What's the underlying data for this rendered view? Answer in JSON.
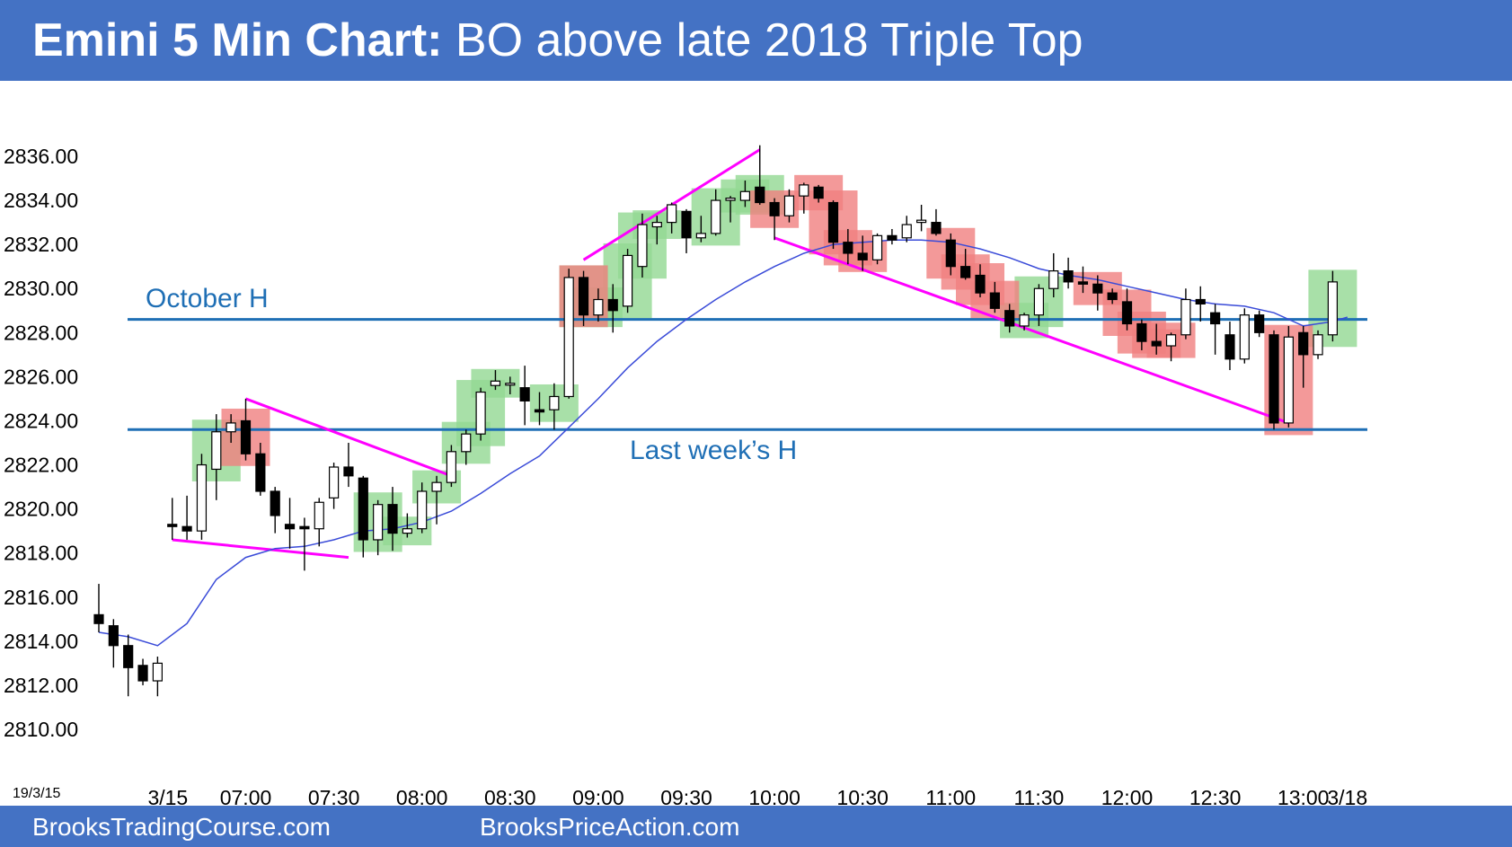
{
  "header": {
    "title_bold": "Emini 5 Min Chart:",
    "title_rest": " BO above late 2018 Triple Top"
  },
  "footer": {
    "left": "BrooksTradingCourse.com",
    "right": "BrooksPriceAction.com"
  },
  "colors": {
    "header_bg": "#4472c4",
    "bull_signal": "#92d892",
    "bear_signal": "#f08080",
    "level_line": "#1f6fb5",
    "trendline": "#ff00ff",
    "ema": "#3a4bd8"
  },
  "chart_data": {
    "type": "candlestick",
    "title": "Emini 5 Min Chart: BO above late 2018 Triple Top",
    "corner_date_label": "19/3/15",
    "ylim": [
      2809,
      2839
    ],
    "yticks": [
      2810,
      2812,
      2814,
      2816,
      2818,
      2820,
      2822,
      2824,
      2826,
      2828,
      2830,
      2832,
      2834,
      2836
    ],
    "ytick_labels": [
      "2810.00",
      "2812.00",
      "2814.00",
      "2816.00",
      "2818.00",
      "2820.00",
      "2822.00",
      "2824.00",
      "2826.00",
      "2828.00",
      "2830.00",
      "2832.00",
      "2834.00",
      "2836.00"
    ],
    "xtick_labels": [
      {
        "bar": 4.7,
        "label": "3/15"
      },
      {
        "bar": 10,
        "label": "07:00"
      },
      {
        "bar": 16,
        "label": "07:30"
      },
      {
        "bar": 22,
        "label": "08:00"
      },
      {
        "bar": 28,
        "label": "08:30"
      },
      {
        "bar": 34,
        "label": "09:00"
      },
      {
        "bar": 40,
        "label": "09:30"
      },
      {
        "bar": 46,
        "label": "10:00"
      },
      {
        "bar": 52,
        "label": "10:30"
      },
      {
        "bar": 58,
        "label": "11:00"
      },
      {
        "bar": 64,
        "label": "11:30"
      },
      {
        "bar": 70,
        "label": "12:00"
      },
      {
        "bar": 76,
        "label": "12:30"
      },
      {
        "bar": 82,
        "label": "13:00"
      },
      {
        "bar": 85,
        "label": "3/18"
      }
    ],
    "bars": [
      {
        "o": 2815.2,
        "h": 2816.6,
        "l": 2814.4,
        "c": 2814.8
      },
      {
        "o": 2814.7,
        "h": 2815.0,
        "l": 2812.8,
        "c": 2813.8
      },
      {
        "o": 2813.8,
        "h": 2814.3,
        "l": 2811.5,
        "c": 2812.8
      },
      {
        "o": 2812.9,
        "h": 2813.2,
        "l": 2812.0,
        "c": 2812.2
      },
      {
        "o": 2812.2,
        "h": 2813.3,
        "l": 2811.5,
        "c": 2813.0
      },
      {
        "o": 2819.3,
        "h": 2820.5,
        "l": 2818.6,
        "c": 2819.2
      },
      {
        "o": 2819.2,
        "h": 2820.6,
        "l": 2818.6,
        "c": 2819.0
      },
      {
        "o": 2819.0,
        "h": 2822.5,
        "l": 2818.6,
        "c": 2822.0
      },
      {
        "o": 2821.8,
        "h": 2824.3,
        "l": 2820.4,
        "c": 2823.5
      },
      {
        "o": 2823.5,
        "h": 2824.3,
        "l": 2823.0,
        "c": 2823.9
      },
      {
        "o": 2824.0,
        "h": 2825.0,
        "l": 2822.2,
        "c": 2822.5
      },
      {
        "o": 2822.5,
        "h": 2823.0,
        "l": 2820.6,
        "c": 2820.8
      },
      {
        "o": 2820.8,
        "h": 2821.0,
        "l": 2818.9,
        "c": 2819.7
      },
      {
        "o": 2819.3,
        "h": 2820.5,
        "l": 2818.2,
        "c": 2819.1
      },
      {
        "o": 2819.2,
        "h": 2819.6,
        "l": 2817.2,
        "c": 2819.1
      },
      {
        "o": 2819.1,
        "h": 2820.5,
        "l": 2818.3,
        "c": 2820.3
      },
      {
        "o": 2820.5,
        "h": 2822.1,
        "l": 2820.0,
        "c": 2821.9
      },
      {
        "o": 2821.9,
        "h": 2823.0,
        "l": 2821.0,
        "c": 2821.5
      },
      {
        "o": 2821.4,
        "h": 2821.5,
        "l": 2817.8,
        "c": 2818.6
      },
      {
        "o": 2818.6,
        "h": 2820.4,
        "l": 2817.9,
        "c": 2820.2
      },
      {
        "o": 2820.2,
        "h": 2821.0,
        "l": 2818.1,
        "c": 2818.9
      },
      {
        "o": 2818.9,
        "h": 2819.8,
        "l": 2818.7,
        "c": 2819.1
      },
      {
        "o": 2819.1,
        "h": 2821.2,
        "l": 2818.9,
        "c": 2820.8
      },
      {
        "o": 2820.8,
        "h": 2821.5,
        "l": 2819.3,
        "c": 2821.2
      },
      {
        "o": 2821.2,
        "h": 2822.9,
        "l": 2821.0,
        "c": 2822.6
      },
      {
        "o": 2822.6,
        "h": 2823.6,
        "l": 2822.0,
        "c": 2823.4
      },
      {
        "o": 2823.4,
        "h": 2825.5,
        "l": 2823.1,
        "c": 2825.3
      },
      {
        "o": 2825.6,
        "h": 2826.3,
        "l": 2825.4,
        "c": 2825.8
      },
      {
        "o": 2825.7,
        "h": 2826.0,
        "l": 2825.2,
        "c": 2825.7
      },
      {
        "o": 2825.5,
        "h": 2826.5,
        "l": 2823.8,
        "c": 2824.9
      },
      {
        "o": 2824.5,
        "h": 2825.3,
        "l": 2823.8,
        "c": 2824.4
      },
      {
        "o": 2824.5,
        "h": 2825.7,
        "l": 2823.6,
        "c": 2825.1
      },
      {
        "o": 2825.1,
        "h": 2830.9,
        "l": 2825.0,
        "c": 2830.5
      },
      {
        "o": 2830.5,
        "h": 2830.8,
        "l": 2828.3,
        "c": 2828.8
      },
      {
        "o": 2828.8,
        "h": 2830.0,
        "l": 2828.5,
        "c": 2829.5
      },
      {
        "o": 2829.5,
        "h": 2830.2,
        "l": 2828.0,
        "c": 2829.0
      },
      {
        "o": 2829.2,
        "h": 2831.8,
        "l": 2828.9,
        "c": 2831.5
      },
      {
        "o": 2831.0,
        "h": 2833.4,
        "l": 2830.5,
        "c": 2832.9
      },
      {
        "o": 2832.8,
        "h": 2833.3,
        "l": 2832.0,
        "c": 2833.0
      },
      {
        "o": 2833.0,
        "h": 2833.9,
        "l": 2832.5,
        "c": 2833.8
      },
      {
        "o": 2833.5,
        "h": 2833.6,
        "l": 2831.6,
        "c": 2832.3
      },
      {
        "o": 2832.3,
        "h": 2833.3,
        "l": 2832.1,
        "c": 2832.5
      },
      {
        "o": 2832.5,
        "h": 2834.5,
        "l": 2832.4,
        "c": 2834.0
      },
      {
        "o": 2834.0,
        "h": 2834.2,
        "l": 2833.0,
        "c": 2834.1
      },
      {
        "o": 2834.0,
        "h": 2834.9,
        "l": 2833.7,
        "c": 2834.4
      },
      {
        "o": 2834.6,
        "h": 2836.5,
        "l": 2833.8,
        "c": 2833.9
      },
      {
        "o": 2833.9,
        "h": 2834.1,
        "l": 2832.2,
        "c": 2833.3
      },
      {
        "o": 2833.3,
        "h": 2834.5,
        "l": 2833.0,
        "c": 2834.2
      },
      {
        "o": 2834.2,
        "h": 2834.8,
        "l": 2833.4,
        "c": 2834.7
      },
      {
        "o": 2834.6,
        "h": 2834.7,
        "l": 2833.9,
        "c": 2834.1
      },
      {
        "o": 2833.9,
        "h": 2834.0,
        "l": 2831.8,
        "c": 2832.1
      },
      {
        "o": 2832.1,
        "h": 2832.7,
        "l": 2831.1,
        "c": 2831.6
      },
      {
        "o": 2831.6,
        "h": 2832.4,
        "l": 2830.8,
        "c": 2831.3
      },
      {
        "o": 2831.3,
        "h": 2832.5,
        "l": 2831.1,
        "c": 2832.4
      },
      {
        "o": 2832.4,
        "h": 2832.7,
        "l": 2832.0,
        "c": 2832.2
      },
      {
        "o": 2832.3,
        "h": 2833.3,
        "l": 2832.1,
        "c": 2832.9
      },
      {
        "o": 2833.0,
        "h": 2833.8,
        "l": 2832.6,
        "c": 2833.1
      },
      {
        "o": 2833.0,
        "h": 2833.6,
        "l": 2832.4,
        "c": 2832.5
      },
      {
        "o": 2832.2,
        "h": 2832.5,
        "l": 2830.6,
        "c": 2831.0
      },
      {
        "o": 2831.0,
        "h": 2831.8,
        "l": 2830.4,
        "c": 2830.5
      },
      {
        "o": 2830.6,
        "h": 2831.1,
        "l": 2829.6,
        "c": 2829.8
      },
      {
        "o": 2829.8,
        "h": 2830.3,
        "l": 2828.9,
        "c": 2829.1
      },
      {
        "o": 2829.0,
        "h": 2829.3,
        "l": 2828.0,
        "c": 2828.3
      },
      {
        "o": 2828.3,
        "h": 2828.9,
        "l": 2828.1,
        "c": 2828.8
      },
      {
        "o": 2828.8,
        "h": 2830.2,
        "l": 2828.3,
        "c": 2830.0
      },
      {
        "o": 2830.0,
        "h": 2831.6,
        "l": 2829.6,
        "c": 2830.8
      },
      {
        "o": 2830.8,
        "h": 2831.4,
        "l": 2830.0,
        "c": 2830.3
      },
      {
        "o": 2830.3,
        "h": 2831.0,
        "l": 2829.8,
        "c": 2830.2
      },
      {
        "o": 2830.2,
        "h": 2830.6,
        "l": 2829.0,
        "c": 2829.8
      },
      {
        "o": 2829.8,
        "h": 2830.0,
        "l": 2829.3,
        "c": 2829.5
      },
      {
        "o": 2829.4,
        "h": 2830.0,
        "l": 2828.1,
        "c": 2828.4
      },
      {
        "o": 2828.4,
        "h": 2828.6,
        "l": 2827.2,
        "c": 2827.6
      },
      {
        "o": 2827.6,
        "h": 2828.4,
        "l": 2827.0,
        "c": 2827.4
      },
      {
        "o": 2827.4,
        "h": 2828.0,
        "l": 2826.7,
        "c": 2827.9
      },
      {
        "o": 2827.9,
        "h": 2830.0,
        "l": 2827.7,
        "c": 2829.5
      },
      {
        "o": 2829.5,
        "h": 2830.1,
        "l": 2828.5,
        "c": 2829.3
      },
      {
        "o": 2828.9,
        "h": 2829.3,
        "l": 2827.0,
        "c": 2828.4
      },
      {
        "o": 2827.9,
        "h": 2828.5,
        "l": 2826.3,
        "c": 2826.8
      },
      {
        "o": 2826.8,
        "h": 2829.1,
        "l": 2826.6,
        "c": 2828.8
      },
      {
        "o": 2828.8,
        "h": 2829.0,
        "l": 2827.8,
        "c": 2828.0
      },
      {
        "o": 2827.9,
        "h": 2828.1,
        "l": 2823.6,
        "c": 2823.9
      },
      {
        "o": 2823.9,
        "h": 2828.3,
        "l": 2823.7,
        "c": 2827.8
      },
      {
        "o": 2828.0,
        "h": 2828.3,
        "l": 2825.5,
        "c": 2827.0
      },
      {
        "o": 2827.0,
        "h": 2828.1,
        "l": 2826.8,
        "c": 2827.9
      },
      {
        "o": 2827.9,
        "h": 2830.8,
        "l": 2827.6,
        "c": 2830.3
      }
    ],
    "ema20": [
      [
        0,
        2814.4
      ],
      [
        2,
        2814.2
      ],
      [
        4,
        2813.8
      ],
      [
        6,
        2814.8
      ],
      [
        8,
        2816.8
      ],
      [
        10,
        2817.8
      ],
      [
        12,
        2818.2
      ],
      [
        14,
        2818.3
      ],
      [
        16,
        2818.6
      ],
      [
        18,
        2819.0
      ],
      [
        20,
        2819.1
      ],
      [
        22,
        2819.4
      ],
      [
        24,
        2819.9
      ],
      [
        26,
        2820.7
      ],
      [
        28,
        2821.6
      ],
      [
        30,
        2822.4
      ],
      [
        32,
        2823.7
      ],
      [
        34,
        2825.0
      ],
      [
        36,
        2826.4
      ],
      [
        38,
        2827.6
      ],
      [
        40,
        2828.6
      ],
      [
        42,
        2829.5
      ],
      [
        44,
        2830.3
      ],
      [
        46,
        2831.0
      ],
      [
        48,
        2831.6
      ],
      [
        50,
        2832.0
      ],
      [
        52,
        2832.1
      ],
      [
        54,
        2832.2
      ],
      [
        56,
        2832.2
      ],
      [
        58,
        2832.1
      ],
      [
        60,
        2831.8
      ],
      [
        62,
        2831.4
      ],
      [
        64,
        2830.9
      ],
      [
        66,
        2830.6
      ],
      [
        68,
        2830.4
      ],
      [
        70,
        2830.1
      ],
      [
        72,
        2829.8
      ],
      [
        74,
        2829.5
      ],
      [
        76,
        2829.3
      ],
      [
        78,
        2829.2
      ],
      [
        80,
        2828.9
      ],
      [
        82,
        2828.3
      ],
      [
        84,
        2828.5
      ],
      [
        85,
        2828.7
      ]
    ],
    "levels": [
      {
        "name": "October H",
        "y": 2828.6
      },
      {
        "name": "Last week’s H",
        "y": 2823.6
      }
    ],
    "trendlines": [
      {
        "from": [
          5,
          2818.6
        ],
        "to": [
          17,
          2817.8
        ]
      },
      {
        "from": [
          10,
          2825.0
        ],
        "to": [
          24,
          2821.5
        ]
      },
      {
        "from": [
          33,
          2831.3
        ],
        "to": [
          45,
          2836.3
        ]
      },
      {
        "from": [
          46,
          2832.3
        ],
        "to": [
          81,
          2823.9
        ]
      }
    ],
    "signal_bars": {
      "bull": [
        8,
        19,
        21,
        23,
        25,
        26,
        27,
        31,
        33,
        34,
        36,
        37,
        38,
        42,
        44,
        45,
        63,
        64,
        84
      ],
      "bear": [
        10,
        33,
        46,
        49,
        50,
        51,
        52,
        58,
        59,
        60,
        61,
        68,
        70,
        71,
        72,
        73,
        81
      ]
    }
  }
}
